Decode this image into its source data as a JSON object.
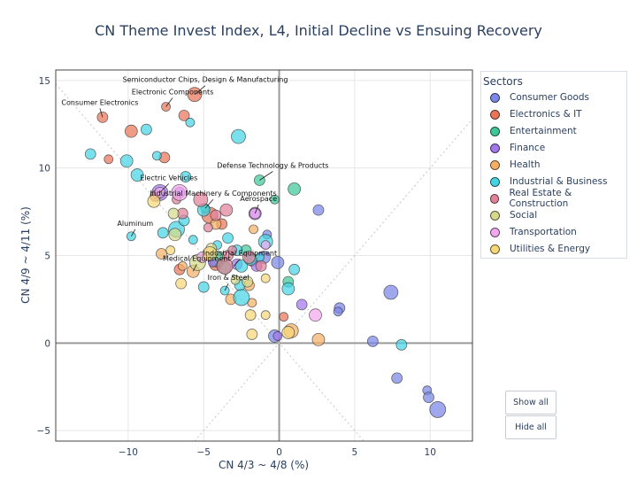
{
  "chart_data": {
    "type": "scatter",
    "title": "CN Theme Invest Index, L4, Initial Decline vs Ensuing Recovery",
    "xlabel": "CN 4/3 ~ 4/8 (%)",
    "ylabel": "CN 4/9 ~ 4/11 (%)",
    "xlim": [
      -14.8,
      12.8
    ],
    "ylim": [
      -5.6,
      15.6
    ],
    "xticks": [
      -10,
      -5,
      0,
      5,
      10
    ],
    "yticks": [
      -5,
      0,
      5,
      10,
      15
    ],
    "grid": true,
    "legend_title": "Sectors",
    "legend_position": "right",
    "series": [
      {
        "name": "Consumer Goods",
        "color": "#7b86e6",
        "points": [
          [
            2.6,
            7.6
          ],
          [
            -0.8,
            6.2
          ],
          [
            -1.0,
            4.9
          ],
          [
            4.0,
            2.0
          ],
          [
            3.9,
            1.8
          ],
          [
            7.4,
            2.9
          ],
          [
            6.2,
            0.1
          ],
          [
            -0.3,
            0.4
          ],
          [
            9.8,
            -2.7
          ],
          [
            9.9,
            -3.1
          ],
          [
            10.5,
            -3.8
          ],
          [
            7.8,
            -2.0
          ],
          [
            -0.1,
            4.6
          ]
        ]
      },
      {
        "name": "Electronics & IT",
        "color": "#e8745a",
        "points": [
          [
            -11.7,
            12.9
          ],
          [
            -7.5,
            13.5
          ],
          [
            -5.6,
            14.2
          ],
          [
            -6.3,
            13.0
          ],
          [
            -9.8,
            12.1
          ],
          [
            -11.3,
            10.5
          ],
          [
            -7.6,
            10.6
          ],
          [
            -4.6,
            7.3
          ],
          [
            -3.8,
            6.8
          ],
          [
            -4.2,
            4.5
          ],
          [
            0.3,
            1.5
          ],
          [
            -1.8,
            4.7
          ],
          [
            -6.6,
            4.2
          ]
        ]
      },
      {
        "name": "Entertainment",
        "color": "#3ec898",
        "points": [
          [
            -1.3,
            9.3
          ],
          [
            1.0,
            8.8
          ],
          [
            -0.3,
            8.2
          ],
          [
            -2.2,
            5.3
          ],
          [
            -4.1,
            4.8
          ],
          [
            0.6,
            3.5
          ],
          [
            -3.6,
            4.3
          ],
          [
            -4.9,
            7.7
          ]
        ]
      },
      {
        "name": "Finance",
        "color": "#a277ec",
        "points": [
          [
            1.5,
            2.2
          ],
          [
            -7.9,
            8.6
          ],
          [
            -6.6,
            8.6
          ],
          [
            -1.6,
            7.4
          ],
          [
            -0.1,
            0.4
          ],
          [
            -2.8,
            4.5
          ],
          [
            -1.5,
            4.4
          ],
          [
            -4.4,
            4.6
          ]
        ]
      },
      {
        "name": "Health",
        "color": "#f5b066",
        "points": [
          [
            -5.7,
            4.1
          ],
          [
            -6.4,
            4.4
          ],
          [
            -7.8,
            5.1
          ],
          [
            -4.2,
            6.8
          ],
          [
            -1.7,
            6.5
          ],
          [
            2.6,
            0.2
          ],
          [
            -3.2,
            2.5
          ],
          [
            -1.8,
            2.3
          ],
          [
            0.8,
            0.7
          ],
          [
            -2.0,
            3.3
          ]
        ]
      },
      {
        "name": "Industrial & Business",
        "color": "#45d4e4",
        "points": [
          [
            -12.5,
            10.8
          ],
          [
            -8.1,
            10.7
          ],
          [
            -10.1,
            10.4
          ],
          [
            -8.8,
            12.2
          ],
          [
            -5.9,
            12.6
          ],
          [
            -2.7,
            11.8
          ],
          [
            -6.2,
            9.5
          ],
          [
            -9.4,
            9.6
          ],
          [
            -9.8,
            6.1
          ],
          [
            -7.7,
            6.3
          ],
          [
            -6.8,
            6.5
          ],
          [
            -6.3,
            7.0
          ],
          [
            -5.0,
            7.6
          ],
          [
            -4.1,
            5.6
          ],
          [
            -3.4,
            6.0
          ],
          [
            -2.8,
            5.3
          ],
          [
            -3.6,
            3.0
          ],
          [
            -2.5,
            4.4
          ],
          [
            -2.6,
            3.3
          ],
          [
            -1.3,
            4.9
          ],
          [
            -0.9,
            5.8
          ],
          [
            1.0,
            4.2
          ],
          [
            0.6,
            3.1
          ],
          [
            -5.7,
            5.9
          ],
          [
            -5.0,
            3.2
          ],
          [
            -2.5,
            2.6
          ],
          [
            8.1,
            -0.1
          ],
          [
            -1.9,
            4.8
          ]
        ]
      },
      {
        "name": "Real Estate & Construction",
        "color": "#e0829a",
        "points": [
          [
            -8.2,
            8.4
          ],
          [
            -6.8,
            8.2
          ],
          [
            -5.2,
            8.2
          ],
          [
            -4.2,
            7.3
          ],
          [
            -3.5,
            7.6
          ],
          [
            -4.7,
            6.6
          ],
          [
            -3.4,
            5.0
          ],
          [
            -3.6,
            4.4
          ],
          [
            -1.2,
            4.4
          ],
          [
            -2.0,
            4.9
          ],
          [
            -3.1,
            5.3
          ],
          [
            -6.4,
            7.4
          ]
        ]
      },
      {
        "name": "Social",
        "color": "#d6d98a",
        "points": [
          [
            -7.0,
            7.4
          ],
          [
            -6.9,
            6.2
          ],
          [
            -2.9,
            3.6
          ],
          [
            -2.1,
            3.5
          ],
          [
            -5.4,
            4.6
          ],
          [
            -4.5,
            5.4
          ]
        ]
      },
      {
        "name": "Transportation",
        "color": "#f2a8ef",
        "points": [
          [
            -7.9,
            8.6
          ],
          [
            -6.6,
            8.6
          ],
          [
            -1.6,
            7.4
          ],
          [
            2.4,
            1.6
          ],
          [
            -0.9,
            5.6
          ],
          [
            -5.1,
            4.9
          ]
        ]
      },
      {
        "name": "Utilities & Energy",
        "color": "#f6d779",
        "points": [
          [
            -8.3,
            8.1
          ],
          [
            -7.2,
            5.3
          ],
          [
            -6.5,
            3.4
          ],
          [
            -1.9,
            1.6
          ],
          [
            -0.9,
            1.6
          ],
          [
            0.6,
            0.6
          ],
          [
            -1.8,
            0.5
          ],
          [
            -0.9,
            3.7
          ],
          [
            -4.6,
            5.1
          ]
        ]
      }
    ],
    "annotations": [
      {
        "text": "Semiconductor Chips, Design & Manufacturing",
        "x": -5.6,
        "y": 14.2
      },
      {
        "text": "Electronic Components",
        "x": -7.5,
        "y": 13.5
      },
      {
        "text": "Consumer Electronics",
        "x": -11.7,
        "y": 12.9
      },
      {
        "text": "Defense Technology & Products",
        "x": -1.3,
        "y": 9.3
      },
      {
        "text": "Electric Vehicles",
        "x": -7.9,
        "y": 8.6
      },
      {
        "text": "Industrial Machinery & Components",
        "x": -4.9,
        "y": 7.7
      },
      {
        "text": "Aerospace",
        "x": -1.6,
        "y": 7.4
      },
      {
        "text": "Aluminum",
        "x": -9.8,
        "y": 6.1
      },
      {
        "text": "Industrial Equipment",
        "x": -3.0,
        "y": 4.4
      },
      {
        "text": "Medical Equipment",
        "x": -5.7,
        "y": 4.1
      },
      {
        "text": "Iron & Steel",
        "x": -3.6,
        "y": 3.0
      }
    ]
  },
  "controls": {
    "show_all": "Show all",
    "hide_all": "Hide all"
  }
}
